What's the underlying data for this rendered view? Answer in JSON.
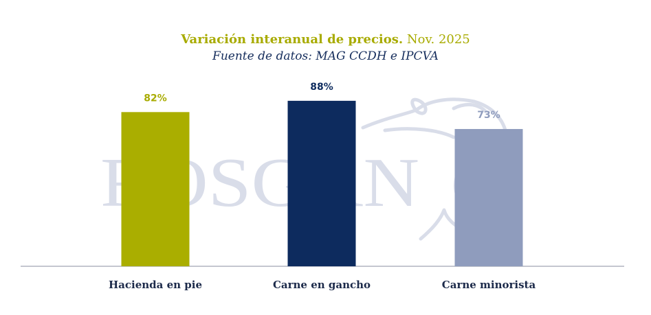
{
  "title": {
    "bold": "Variación interanual de precios.",
    "rest": "Nov. 2025"
  },
  "subtitle": "Fuente de datos: MAG CCDH e IPCVA",
  "watermark": "ROSGAN",
  "colors": {
    "title_accent": "#a8ab00",
    "subtitle": "#152d5c",
    "watermark": "#d9dde9",
    "axis": "#b0b4bf",
    "category_label": "#1c2a4a"
  },
  "chart_data": {
    "type": "bar",
    "categories": [
      "Hacienda en pie",
      "Carne en gancho",
      "Carne minorista"
    ],
    "values": [
      82,
      88,
      73
    ],
    "value_labels": [
      "82%",
      "88%",
      "73%"
    ],
    "unit": "%",
    "colors": [
      "#aaae00",
      "#0d2b5e",
      "#8f9cbd"
    ],
    "label_colors": [
      "#a8ab00",
      "#0d2b5e",
      "#8f9cbd"
    ],
    "ylim": [
      0,
      100
    ],
    "grid": false,
    "legend": "none"
  }
}
